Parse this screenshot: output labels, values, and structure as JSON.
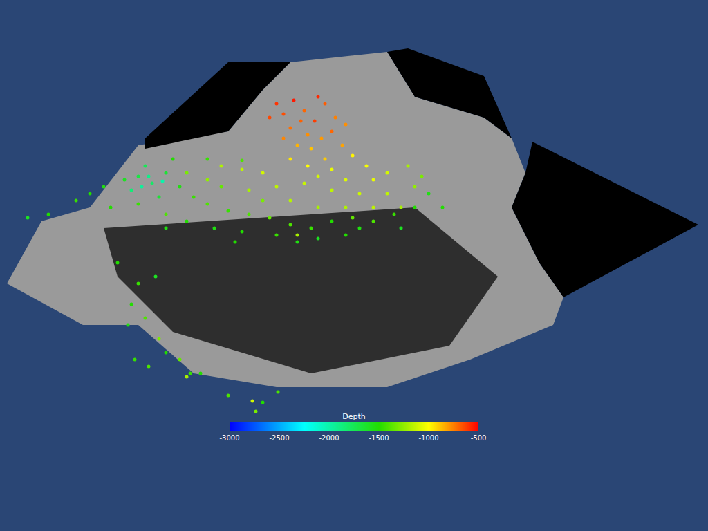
{
  "chart_data": {
    "type": "scatter",
    "tick_labels": false,
    "grid": false,
    "xlim": [
      0,
      1024
    ],
    "ylim": [
      768,
      0
    ],
    "colorbar": {
      "title": "Depth",
      "range": [
        -3000,
        -500
      ],
      "ticks": [
        -3000,
        -2500,
        -2000,
        -1500,
        -1000,
        -500
      ]
    },
    "regions": [
      {
        "color": "#9a9a9a",
        "x": [
          10,
          60,
          130,
          200,
          330,
          380,
          420,
          560,
          600,
          700,
          740,
          760,
          740,
          780,
          815,
          800,
          680,
          560,
          400,
          280,
          200,
          120,
          10
        ],
        "y": [
          410,
          320,
          300,
          210,
          190,
          130,
          90,
          75,
          140,
          170,
          200,
          250,
          300,
          380,
          430,
          470,
          520,
          560,
          560,
          540,
          470,
          470,
          410
        ]
      },
      {
        "color": "#2e2e2e",
        "x": [
          150,
          600,
          720,
          650,
          450,
          250,
          170,
          150
        ],
        "y": [
          330,
          300,
          400,
          500,
          540,
          480,
          400,
          330
        ]
      },
      {
        "color": "#000000",
        "x": [
          770,
          1010,
          815,
          780,
          740,
          760,
          770
        ],
        "y": [
          205,
          325,
          430,
          380,
          300,
          250,
          205
        ]
      },
      {
        "color": "#000000",
        "x": [
          210,
          330,
          420,
          380,
          330,
          210,
          210
        ],
        "y": [
          200,
          90,
          90,
          130,
          190,
          215,
          200
        ]
      },
      {
        "color": "#000000",
        "x": [
          560,
          590,
          700,
          740,
          700,
          600,
          560
        ],
        "y": [
          75,
          70,
          110,
          200,
          170,
          140,
          75
        ]
      }
    ],
    "points": {
      "x": [
        400,
        410,
        425,
        440,
        455,
        470,
        485,
        420,
        445,
        465,
        430,
        480,
        495,
        410,
        450,
        470,
        500,
        390,
        460,
        435,
        420,
        445,
        480,
        510,
        530,
        500,
        460,
        540,
        560,
        520,
        480,
        440,
        400,
        380,
        350,
        320,
        560,
        580,
        600,
        540,
        500,
        460,
        420,
        360,
        300,
        270,
        590,
        610,
        180,
        200,
        220,
        240,
        260,
        280,
        300,
        330,
        360,
        390,
        420,
        450,
        480,
        510,
        540,
        570,
        600,
        620,
        150,
        130,
        110,
        160,
        200,
        240,
        270,
        310,
        350,
        400,
        430,
        460,
        500,
        250,
        300,
        350,
        210,
        190,
        230,
        320,
        380,
        520,
        580,
        640,
        70,
        40,
        215,
        235,
        205,
        170,
        200,
        190,
        210,
        185,
        230,
        260,
        275,
        240,
        215,
        270,
        290,
        330,
        365,
        370,
        380,
        402,
        240,
        340,
        430,
        195,
        225
      ],
      "y": [
        150,
        165,
        145,
        160,
        175,
        150,
        170,
        185,
        195,
        200,
        210,
        190,
        210,
        200,
        215,
        230,
        180,
        170,
        140,
        175,
        230,
        240,
        245,
        225,
        240,
        260,
        255,
        260,
        250,
        280,
        275,
        265,
        270,
        250,
        245,
        240,
        280,
        300,
        270,
        300,
        300,
        300,
        290,
        275,
        260,
        250,
        240,
        255,
        260,
        255,
        265,
        250,
        270,
        285,
        295,
        305,
        310,
        315,
        325,
        330,
        320,
        315,
        320,
        310,
        300,
        280,
        270,
        280,
        290,
        300,
        295,
        310,
        320,
        330,
        335,
        340,
        350,
        345,
        340,
        230,
        230,
        232,
        240,
        275,
        285,
        270,
        290,
        330,
        330,
        300,
        310,
        315,
        255,
        262,
        270,
        380,
        410,
        440,
        460,
        470,
        490,
        520,
        540,
        510,
        530,
        545,
        540,
        572,
        580,
        595,
        582,
        567,
        330,
        350,
        340,
        520,
        400
      ],
      "depth": [
        -600,
        -650,
        -550,
        -700,
        -620,
        -680,
        -750,
        -720,
        -780,
        -800,
        -850,
        -700,
        -820,
        -760,
        -880,
        -900,
        -780,
        -640,
        -580,
        -690,
        -950,
        -1000,
        -1050,
        -980,
        -1020,
        -1080,
        -1100,
        -1050,
        -1100,
        -1120,
        -1150,
        -1130,
        -1150,
        -1100,
        -1150,
        -1180,
        -1150,
        -1200,
        -1250,
        -1150,
        -1180,
        -1200,
        -1170,
        -1200,
        -1250,
        -1300,
        -1200,
        -1300,
        -1600,
        -1700,
        -1800,
        -1650,
        -1550,
        -1450,
        -1400,
        -1450,
        -1400,
        -1350,
        -1400,
        -1450,
        -1500,
        -1350,
        -1400,
        -1450,
        -1500,
        -1550,
        -1550,
        -1500,
        -1450,
        -1500,
        -1450,
        -1400,
        -1500,
        -1550,
        -1500,
        -1450,
        -1550,
        -1600,
        -1500,
        -1500,
        -1450,
        -1400,
        -1750,
        -1850,
        -1650,
        -1350,
        -1300,
        -1550,
        -1600,
        -1500,
        -1500,
        -1600,
        -1900,
        -2000,
        -1950,
        -1500,
        -1450,
        -1500,
        -1400,
        -1550,
        -1300,
        -1350,
        -1450,
        -1500,
        -1400,
        -1200,
        -1500,
        -1400,
        -1100,
        -1300,
        -1500,
        -1400,
        -1550,
        -1500,
        -1200,
        -1450,
        -1600
      ]
    }
  }
}
